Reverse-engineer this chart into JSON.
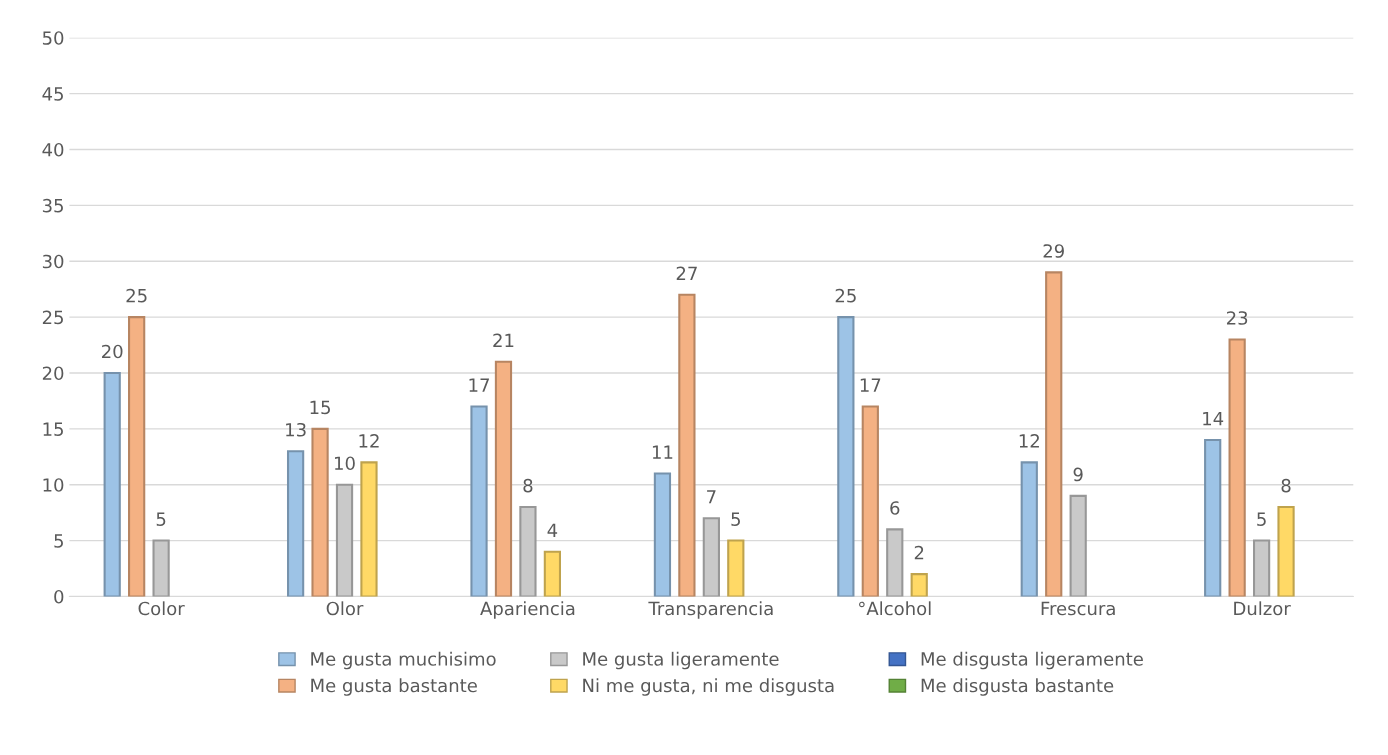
{
  "chart_data": {
    "type": "bar",
    "categories": [
      "Color",
      "Olor",
      "Apariencia",
      "Transparencia",
      "°Alcohol",
      "Frescura",
      "Dulzor"
    ],
    "series": [
      {
        "name": "Me gusta muchisimo",
        "color": "#9dc3e6",
        "values": [
          20,
          13,
          17,
          11,
          25,
          12,
          14
        ]
      },
      {
        "name": "Me gusta bastante",
        "color": "#f4b183",
        "values": [
          25,
          15,
          21,
          27,
          17,
          29,
          23
        ]
      },
      {
        "name": "Me gusta ligeramente",
        "color": "#c9c9c9",
        "values": [
          5,
          10,
          8,
          7,
          6,
          9,
          5
        ]
      },
      {
        "name": "Ni me gusta, ni me disgusta",
        "color": "#ffd966",
        "values": [
          null,
          12,
          4,
          5,
          2,
          null,
          8
        ]
      },
      {
        "name": "Me disgusta ligeramente",
        "color": "#4472c4",
        "values": [
          null,
          null,
          null,
          null,
          null,
          null,
          null
        ]
      },
      {
        "name": "Me disgusta bastante",
        "color": "#70ad47",
        "values": [
          null,
          null,
          null,
          null,
          null,
          null,
          null
        ]
      }
    ],
    "ylim": [
      0,
      50
    ],
    "yticks": [
      0,
      5,
      10,
      15,
      20,
      25,
      30,
      35,
      40,
      45,
      50
    ],
    "grid": "y",
    "legend": "bottom",
    "data_labels": true
  }
}
